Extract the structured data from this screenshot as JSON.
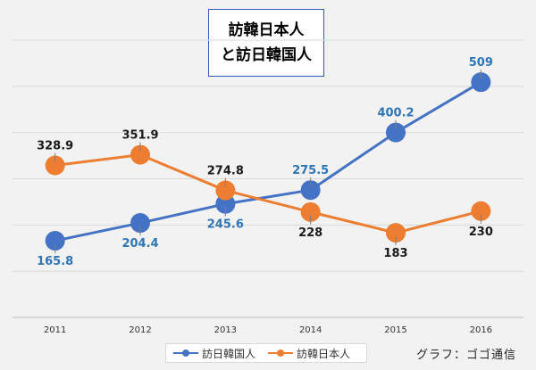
{
  "title": [
    "訪韓日本人",
    "と訪日韓国人"
  ],
  "credit": "グラフ：ゴゴ通信",
  "chart_data": {
    "type": "line",
    "categories": [
      "2011",
      "2012",
      "2013",
      "2014",
      "2015",
      "2016"
    ],
    "ylim": [
      0,
      600
    ],
    "grid": true,
    "legend_position": "bottom",
    "series": [
      {
        "name": "訪日韓国人",
        "color": "#4472c4",
        "label_color": "#2e75b6",
        "values": [
          165.8,
          204.4,
          245.6,
          275.5,
          400.2,
          509
        ],
        "labels": [
          "165.8",
          "204.4",
          "245.6",
          "275.5",
          "400.2",
          "509"
        ],
        "label_positions": [
          "below",
          "below",
          "below",
          "above",
          "above",
          "above"
        ]
      },
      {
        "name": "訪韓日本人",
        "color": "#ed7d31",
        "label_color": "#1a1a1a",
        "values": [
          328.9,
          351.9,
          274.8,
          228,
          183,
          230
        ],
        "labels": [
          "328.9",
          "351.9",
          "274.8",
          "228",
          "183",
          "230"
        ],
        "label_positions": [
          "above",
          "above",
          "above",
          "below",
          "below",
          "below"
        ]
      }
    ]
  }
}
